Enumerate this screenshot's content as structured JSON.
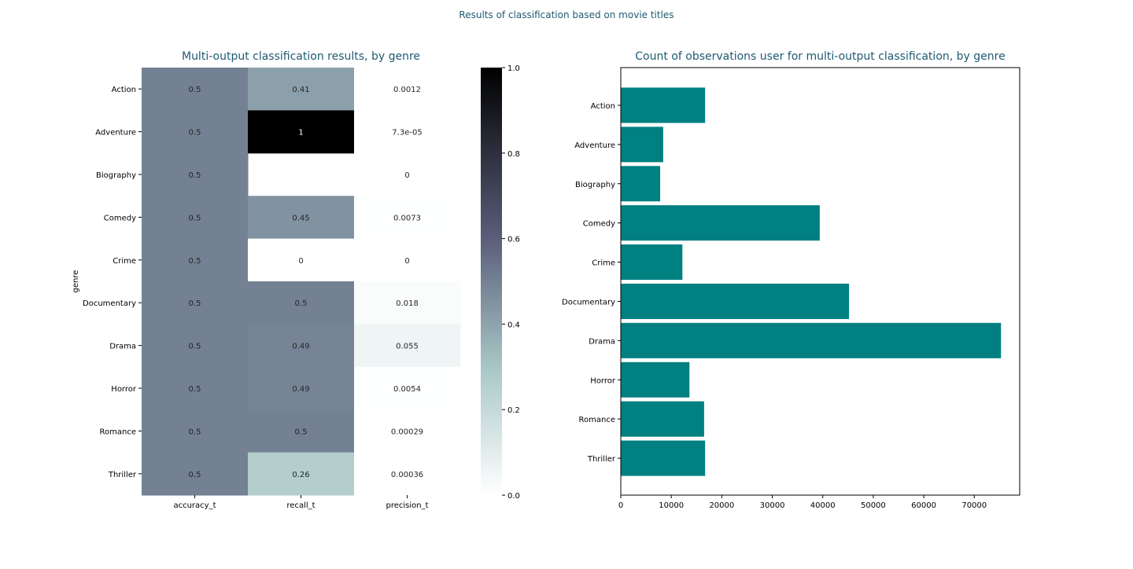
{
  "suptitle": "Results of classification based on movie titles",
  "colors": {
    "title": "#1f5a72",
    "bar": "#008080",
    "cmap_low": "#ffffff",
    "cmap_mid": "#a8c6c6",
    "cmap_mid2": "#5a5e7a",
    "cmap_high": "#000000"
  },
  "chart_data": [
    {
      "type": "heatmap",
      "title": "Multi-output classification results, by genre",
      "ylabel": "genre",
      "xlabel": "",
      "columns": [
        "accuracy_t",
        "recall_t",
        "precision_t"
      ],
      "rows": [
        "Action",
        "Adventure",
        "Biography",
        "Comedy",
        "Crime",
        "Documentary",
        "Drama",
        "Horror",
        "Romance",
        "Thriller"
      ],
      "values": [
        [
          0.5,
          0.41,
          0.0012
        ],
        [
          0.5,
          1,
          7.3e-05
        ],
        [
          0.5,
          null,
          0
        ],
        [
          0.5,
          0.45,
          0.0073
        ],
        [
          0.5,
          0,
          0
        ],
        [
          0.5,
          0.5,
          0.018
        ],
        [
          0.5,
          0.49,
          0.055
        ],
        [
          0.5,
          0.49,
          0.0054
        ],
        [
          0.5,
          0.5,
          0.00029
        ],
        [
          0.5,
          0.26,
          0.00036
        ]
      ],
      "annotations": [
        [
          "0.5",
          "0.41",
          "0.0012"
        ],
        [
          "0.5",
          "1",
          "7.3e-05"
        ],
        [
          "0.5",
          "",
          "0"
        ],
        [
          "0.5",
          "0.45",
          "0.0073"
        ],
        [
          "0.5",
          "0",
          "0"
        ],
        [
          "0.5",
          "0.5",
          "0.018"
        ],
        [
          "0.5",
          "0.49",
          "0.055"
        ],
        [
          "0.5",
          "0.49",
          "0.0054"
        ],
        [
          "0.5",
          "0.5",
          "0.00029"
        ],
        [
          "0.5",
          "0.26",
          "0.00036"
        ]
      ],
      "colorbar": {
        "range": [
          0.0,
          1.0
        ],
        "ticks": [
          "0.0",
          "0.2",
          "0.4",
          "0.6",
          "0.8",
          "1.0"
        ]
      }
    },
    {
      "type": "bar",
      "orientation": "horizontal",
      "title": "Count of observations user for multi-output classification, by genre",
      "xlabel": "",
      "ylabel": "",
      "categories": [
        "Action",
        "Adventure",
        "Biography",
        "Comedy",
        "Crime",
        "Documentary",
        "Drama",
        "Horror",
        "Romance",
        "Thriller"
      ],
      "values": [
        16700,
        8400,
        7800,
        39400,
        12200,
        45200,
        75300,
        13600,
        16500,
        16700
      ],
      "xlim": [
        0,
        79000
      ],
      "xticks": [
        "0",
        "10000",
        "20000",
        "30000",
        "40000",
        "50000",
        "60000",
        "70000"
      ]
    }
  ]
}
